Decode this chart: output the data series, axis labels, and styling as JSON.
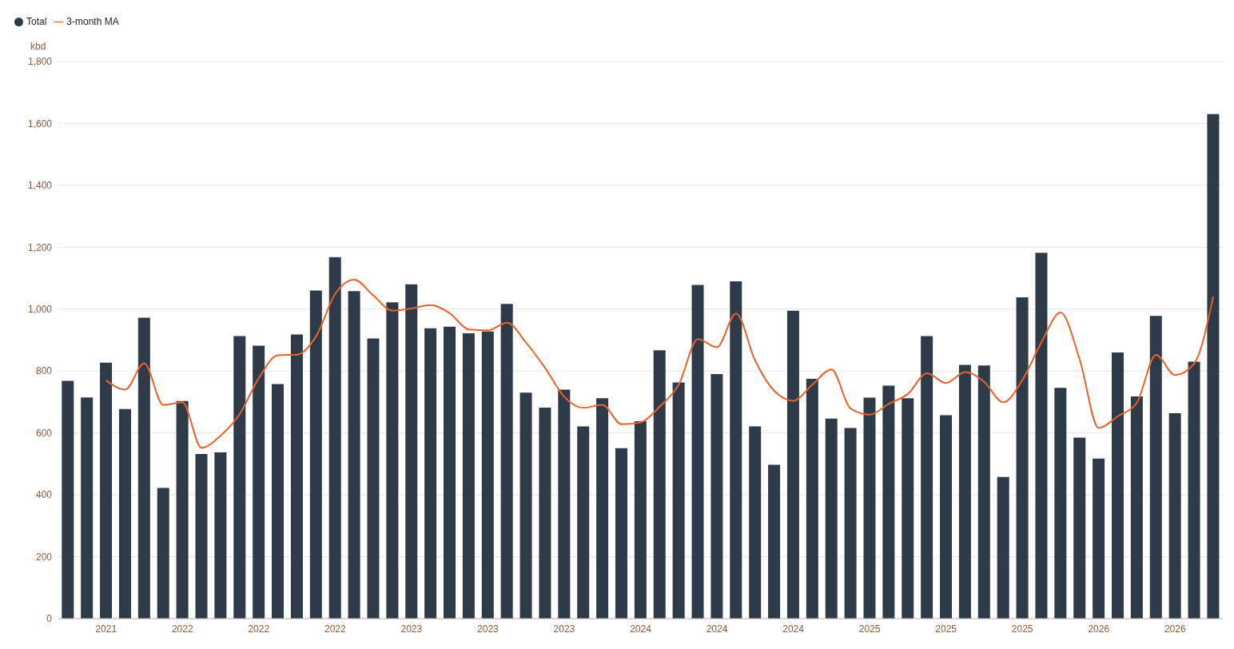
{
  "chart_data": {
    "type": "bar",
    "ylabel": "kbd",
    "categories": [
      null,
      null,
      "2021",
      null,
      null,
      null,
      "2022",
      null,
      null,
      null,
      "2022",
      null,
      null,
      null,
      "2022",
      null,
      null,
      null,
      "2023",
      null,
      null,
      null,
      "2023",
      null,
      null,
      null,
      "2023",
      null,
      null,
      null,
      "2024",
      null,
      null,
      null,
      "2024",
      null,
      null,
      null,
      "2024",
      null,
      null,
      null,
      "2025",
      null,
      null,
      null,
      "2025",
      null,
      null,
      null,
      "2025",
      null,
      null,
      null,
      "2026",
      null,
      null,
      null,
      "2026",
      null,
      null
    ],
    "series": [
      {
        "name": "Total",
        "color": "#2e3a48",
        "values": [
          768,
          715,
          827,
          677,
          972,
          422,
          703,
          532,
          537,
          913,
          882,
          758,
          918,
          1060,
          1168,
          1058,
          905,
          1022,
          1080,
          938,
          943,
          922,
          928,
          1017,
          730,
          682,
          740,
          621,
          712,
          551,
          638,
          867,
          763,
          1078,
          790,
          1090,
          621,
          497,
          995,
          775,
          646,
          616,
          714,
          753,
          712,
          913,
          657,
          820,
          818,
          458,
          1038,
          1182,
          746,
          585,
          517,
          860,
          718,
          978,
          664,
          830,
          1630
        ]
      },
      {
        "name": "3-month MA",
        "type": "line",
        "color": "#e8622a",
        "values": [
          null,
          null,
          770,
          740,
          825,
          690,
          699,
          552,
          591,
          661,
          777,
          851,
          853,
          912,
          1049,
          1095,
          1044,
          995,
          1002,
          1013,
          987,
          934,
          931,
          956,
          892,
          810,
          717,
          681,
          691,
          628,
          634,
          685,
          756,
          903,
          877,
          986,
          834,
          736,
          704,
          756,
          805,
          679,
          659,
          694,
          726,
          793,
          761,
          797,
          765,
          699,
          771,
          893,
          989,
          838,
          616,
          654,
          698,
          852,
          787,
          824,
          1041
        ]
      }
    ],
    "ylim": [
      0,
      1800
    ],
    "yticks": [
      0,
      200,
      400,
      600,
      800,
      {
        "value": 1000,
        "label": "1,000"
      },
      {
        "value": 1200,
        "label": "1,200"
      },
      {
        "value": 1400,
        "label": "1,400"
      },
      {
        "value": 1600,
        "label": "1,600"
      },
      {
        "value": 1800,
        "label": "1,800"
      }
    ],
    "grid": "y",
    "legend": "top left",
    "marker": "none"
  }
}
